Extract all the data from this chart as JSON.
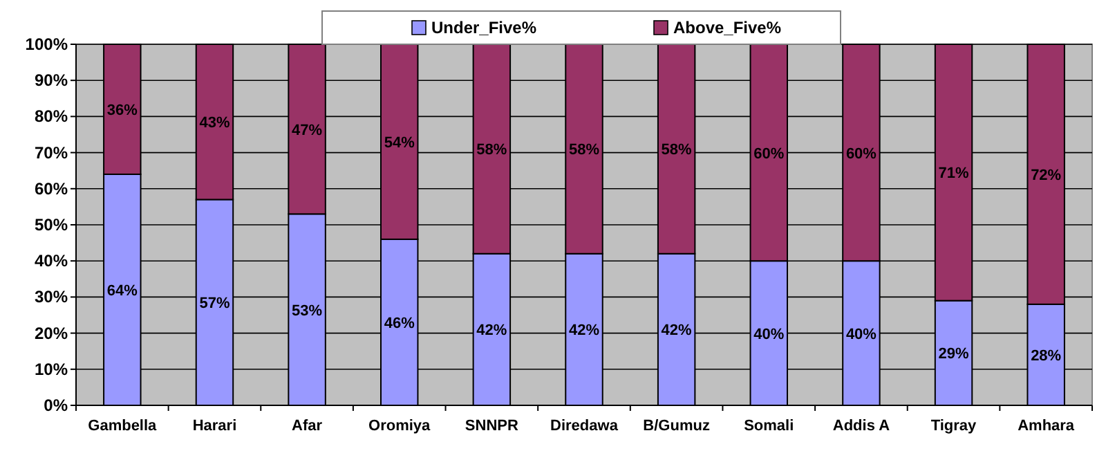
{
  "chart_data": {
    "type": "bar",
    "stacked": true,
    "categories": [
      "Gambella",
      "Harari",
      "Afar",
      "Oromiya",
      "SNNPR",
      "Diredawa",
      "B/Gumuz",
      "Somali",
      "Addis A",
      "Tigray",
      "Amhara"
    ],
    "series": [
      {
        "name": "Under_Five%",
        "color": "#9999ff",
        "values": [
          64,
          57,
          53,
          46,
          42,
          42,
          42,
          40,
          40,
          29,
          28
        ],
        "value_labels": [
          "64%",
          "57%",
          "53%",
          "46%",
          "42%",
          "42%",
          "42%",
          "40%",
          "40%",
          "29%",
          "28%"
        ]
      },
      {
        "name": "Above_Five%",
        "color": "#993366",
        "values": [
          36,
          43,
          47,
          54,
          58,
          58,
          58,
          60,
          60,
          71,
          72
        ],
        "value_labels": [
          "36%",
          "43%",
          "47%",
          "54%",
          "58%",
          "58%",
          "58%",
          "60%",
          "60%",
          "71%",
          "72%"
        ]
      }
    ],
    "ylim": [
      0,
      100
    ],
    "yticks": [
      {
        "value": 0,
        "label": "0%"
      },
      {
        "value": 10,
        "label": "10%"
      },
      {
        "value": 20,
        "label": "20%"
      },
      {
        "value": 30,
        "label": "30%"
      },
      {
        "value": 40,
        "label": "40%"
      },
      {
        "value": 50,
        "label": "50%"
      },
      {
        "value": 60,
        "label": "60%"
      },
      {
        "value": 70,
        "label": "70%"
      },
      {
        "value": 80,
        "label": "80%"
      },
      {
        "value": 90,
        "label": "90%"
      },
      {
        "value": 100,
        "label": "100%"
      }
    ],
    "grid": "y",
    "legend": "top"
  }
}
